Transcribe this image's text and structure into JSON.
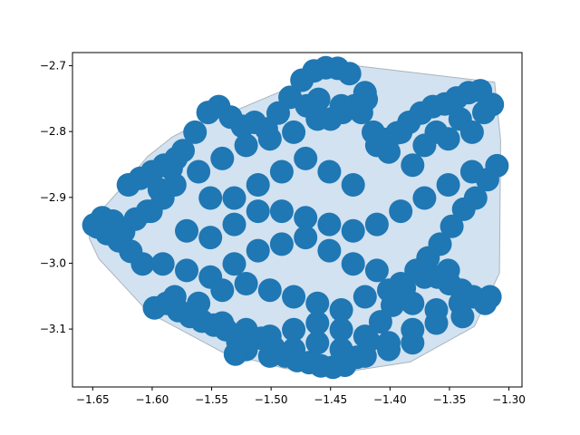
{
  "chart_data": {
    "type": "scatter",
    "title": "",
    "xlabel": "",
    "ylabel": "",
    "xlim": [
      -1.667,
      -1.289
    ],
    "ylim": [
      -3.188,
      -2.68
    ],
    "grid": false,
    "legend": "none",
    "x_ticks": [
      -1.65,
      -1.6,
      -1.55,
      -1.5,
      -1.45,
      -1.4,
      -1.35,
      -1.3
    ],
    "x_tick_labels": [
      "−1.65",
      "−1.60",
      "−1.55",
      "−1.50",
      "−1.45",
      "−1.40",
      "−1.35",
      "−1.30"
    ],
    "y_ticks": [
      -2.7,
      -2.8,
      -2.9,
      -3.0,
      -3.1
    ],
    "y_tick_labels": [
      "−2.7",
      "−2.8",
      "−2.9",
      "−3.0",
      "−3.1"
    ],
    "colors": {
      "points": "#1f77b4",
      "hull_fill": "#d2e2f0",
      "hull_edge": "#aab4be"
    },
    "hull": {
      "x": [
        -1.651,
        -1.627,
        -1.604,
        -1.583,
        -1.561,
        -1.543,
        -1.438,
        -1.312,
        -1.307,
        -1.308,
        -1.329,
        -1.383,
        -1.437,
        -1.488,
        -1.541,
        -1.603,
        -1.645,
        -1.653
      ],
      "y": [
        -2.936,
        -2.888,
        -2.838,
        -2.808,
        -2.788,
        -2.778,
        -2.698,
        -2.725,
        -2.813,
        -3.015,
        -3.096,
        -3.15,
        -3.165,
        -3.16,
        -3.135,
        -3.075,
        -2.993,
        -2.962
      ]
    },
    "series": [
      {
        "x": [
          -1.649,
          -1.642,
          -1.633,
          -1.624,
          -1.614,
          -1.604,
          -1.594,
          -1.584,
          -1.574,
          -1.564,
          -1.553,
          -1.544,
          -1.534,
          -1.524,
          -1.514,
          -1.504,
          -1.494,
          -1.484,
          -1.474,
          -1.464,
          -1.454,
          -1.444,
          -1.434,
          -1.424,
          -1.414,
          -1.404,
          -1.394,
          -1.384,
          -1.374,
          -1.364,
          -1.354,
          -1.344,
          -1.334,
          -1.324,
          -1.314,
          -1.31,
          -1.318,
          -1.328,
          -1.338,
          -1.348,
          -1.358,
          -1.368,
          -1.378,
          -1.388,
          -1.398,
          -1.408,
          -1.418,
          -1.428,
          -1.438,
          -1.448,
          -1.458,
          -1.468,
          -1.478,
          -1.488,
          -1.498,
          -1.508,
          -1.518,
          -1.528,
          -1.538,
          -1.548,
          -1.558,
          -1.568,
          -1.578,
          -1.588,
          -1.598,
          -1.608,
          -1.618,
          -1.628,
          -1.638,
          -1.646,
          -1.601,
          -1.591,
          -1.581,
          -1.561,
          -1.541,
          -1.521,
          -1.501,
          -1.481,
          -1.461,
          -1.441,
          -1.421,
          -1.401,
          -1.381,
          -1.361,
          -1.341,
          -1.321,
          -1.551,
          -1.531,
          -1.511,
          -1.491,
          -1.471,
          -1.451,
          -1.431,
          -1.411,
          -1.391,
          -1.371,
          -1.351,
          -1.331,
          -1.571,
          -1.551,
          -1.531,
          -1.511,
          -1.491,
          -1.471,
          -1.451,
          -1.431,
          -1.411,
          -1.391,
          -1.371,
          -1.351,
          -1.331,
          -1.591,
          -1.571,
          -1.551,
          -1.531,
          -1.511,
          -1.491,
          -1.471,
          -1.451,
          -1.431,
          -1.411,
          -1.391,
          -1.371,
          -1.351,
          -1.581,
          -1.561,
          -1.541,
          -1.521,
          -1.501,
          -1.481,
          -1.461,
          -1.441,
          -1.421,
          -1.401,
          -1.381,
          -1.361,
          -1.341,
          -1.316,
          -1.541,
          -1.521,
          -1.501,
          -1.481,
          -1.461,
          -1.441,
          -1.421,
          -1.401,
          -1.381,
          -1.361,
          -1.339,
          -1.521,
          -1.501,
          -1.481,
          -1.461,
          -1.441,
          -1.421,
          -1.401,
          -1.381,
          -1.53,
          -1.45,
          -1.44,
          -1.43,
          -1.42,
          -1.46,
          -1.47,
          -1.36,
          -1.35,
          -1.34,
          -1.33,
          -1.32,
          -1.62,
          -1.61,
          -1.6,
          -1.59,
          -1.58
        ],
        "y": [
          -2.942,
          -2.931,
          -2.936,
          -2.952,
          -2.933,
          -2.921,
          -2.888,
          -2.856,
          -2.829,
          -2.801,
          -2.771,
          -2.762,
          -2.778,
          -2.792,
          -2.786,
          -2.796,
          -2.772,
          -2.748,
          -2.722,
          -2.708,
          -2.703,
          -2.704,
          -2.712,
          -2.771,
          -2.801,
          -2.812,
          -2.802,
          -2.786,
          -2.772,
          -2.762,
          -2.758,
          -2.749,
          -2.741,
          -2.738,
          -2.759,
          -2.852,
          -2.873,
          -2.901,
          -2.918,
          -2.944,
          -2.971,
          -2.992,
          -3.011,
          -3.038,
          -3.064,
          -3.089,
          -3.118,
          -3.143,
          -3.155,
          -3.158,
          -3.156,
          -3.151,
          -3.148,
          -3.141,
          -3.128,
          -3.114,
          -3.111,
          -3.119,
          -3.101,
          -3.094,
          -3.088,
          -3.081,
          -3.072,
          -3.061,
          -3.068,
          -3.001,
          -2.982,
          -2.966,
          -2.955,
          -2.945,
          -2.921,
          -2.901,
          -2.881,
          -2.861,
          -2.841,
          -2.821,
          -2.811,
          -2.801,
          -2.781,
          -2.761,
          -2.741,
          -2.831,
          -2.851,
          -2.801,
          -2.781,
          -2.771,
          -2.901,
          -2.901,
          -2.881,
          -2.861,
          -2.841,
          -2.861,
          -2.881,
          -2.821,
          -2.801,
          -2.821,
          -2.811,
          -2.801,
          -2.951,
          -2.961,
          -2.941,
          -2.921,
          -2.921,
          -2.931,
          -2.941,
          -2.951,
          -2.941,
          -2.921,
          -2.901,
          -2.881,
          -2.861,
          -3.001,
          -3.011,
          -3.021,
          -3.001,
          -2.981,
          -2.971,
          -2.961,
          -2.981,
          -3.001,
          -3.011,
          -3.031,
          -3.021,
          -3.011,
          -3.051,
          -3.061,
          -3.041,
          -3.031,
          -3.041,
          -3.051,
          -3.061,
          -3.071,
          -3.051,
          -3.041,
          -3.061,
          -3.071,
          -3.061,
          -3.051,
          -3.091,
          -3.101,
          -3.111,
          -3.101,
          -3.091,
          -3.101,
          -3.111,
          -3.121,
          -3.101,
          -3.091,
          -3.081,
          -3.131,
          -3.141,
          -3.131,
          -3.121,
          -3.131,
          -3.141,
          -3.131,
          -3.121,
          -3.138,
          -2.781,
          -2.771,
          -2.761,
          -2.751,
          -2.751,
          -2.761,
          -3.021,
          -3.031,
          -3.041,
          -3.051,
          -3.061,
          -2.881,
          -2.871,
          -2.861,
          -2.851,
          -2.841
        ]
      }
    ]
  }
}
